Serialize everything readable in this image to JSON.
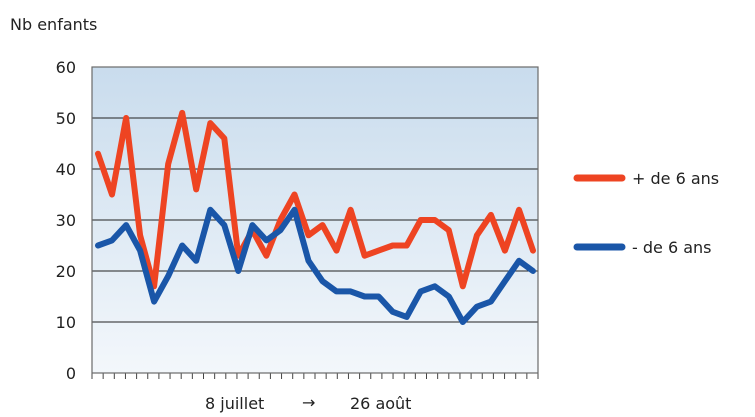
{
  "chart_data": {
    "type": "line",
    "title": "",
    "ylabel": "Nb enfants",
    "xlabel": "8 juillet → 26 août",
    "xlabel_start": "8 juillet",
    "xlabel_arrow": "→",
    "xlabel_end": "26 août",
    "ylim": [
      0,
      60
    ],
    "yticks": [
      0,
      10,
      20,
      30,
      40,
      50,
      60
    ],
    "grid": true,
    "legend": "right",
    "x_count": 41,
    "series": [
      {
        "name": "+ de 6 ans",
        "color": "#ee4422",
        "values": [
          43,
          35,
          50,
          27,
          17,
          41,
          51,
          36,
          49,
          46,
          23,
          28,
          23,
          30,
          35,
          27,
          29,
          24,
          32,
          23,
          24,
          25,
          25,
          30,
          30,
          28,
          17,
          27,
          31,
          24,
          32,
          24
        ]
      },
      {
        "name": "- de 6 ans",
        "color": "#1a56a8",
        "values": [
          25,
          26,
          29,
          24,
          14,
          19,
          25,
          22,
          32,
          29,
          20,
          29,
          26,
          28,
          32,
          22,
          18,
          16,
          16,
          15,
          15,
          12,
          11,
          16,
          17,
          15,
          10,
          13,
          14,
          18,
          22,
          20
        ]
      }
    ]
  }
}
